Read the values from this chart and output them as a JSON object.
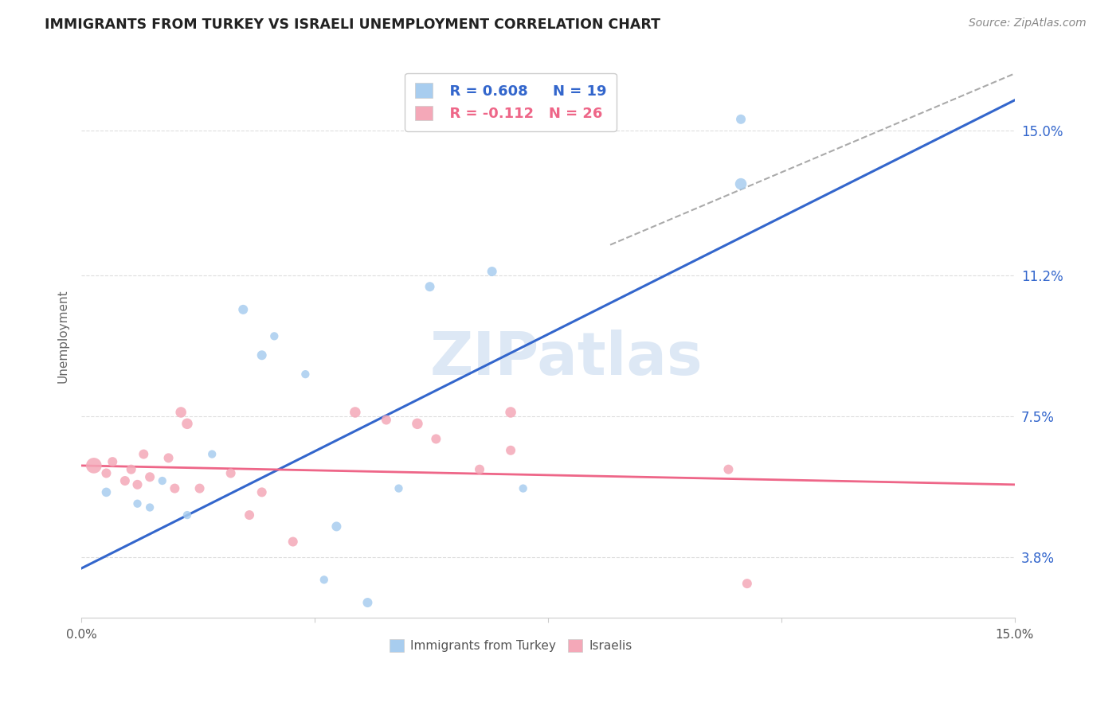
{
  "title": "IMMIGRANTS FROM TURKEY VS ISRAELI UNEMPLOYMENT CORRELATION CHART",
  "source": "Source: ZipAtlas.com",
  "ylabel": "Unemployment",
  "ytick_labels": [
    "3.8%",
    "7.5%",
    "11.2%",
    "15.0%"
  ],
  "ytick_values": [
    3.8,
    7.5,
    11.2,
    15.0
  ],
  "xlim": [
    0.0,
    15.0
  ],
  "ylim": [
    2.2,
    17.0
  ],
  "blue_R": "R = 0.608",
  "blue_N": "N = 19",
  "pink_R": "R = -0.112",
  "pink_N": "N = 26",
  "legend_label_blue": "Immigrants from Turkey",
  "legend_label_pink": "Israelis",
  "blue_color": "#A8CDEF",
  "pink_color": "#F4A8B8",
  "line_blue_color": "#3366CC",
  "line_pink_color": "#EE6688",
  "line_dashed_color": "#AAAAAA",
  "watermark": "ZIPatlas",
  "blue_points": [
    [
      0.4,
      5.5
    ],
    [
      0.9,
      5.2
    ],
    [
      1.1,
      5.1
    ],
    [
      1.3,
      5.8
    ],
    [
      1.7,
      4.9
    ],
    [
      2.1,
      6.5
    ],
    [
      2.6,
      10.3
    ],
    [
      2.9,
      9.1
    ],
    [
      3.1,
      9.6
    ],
    [
      3.6,
      8.6
    ],
    [
      3.9,
      3.2
    ],
    [
      4.1,
      4.6
    ],
    [
      4.6,
      2.6
    ],
    [
      5.1,
      5.6
    ],
    [
      5.6,
      10.9
    ],
    [
      6.6,
      11.3
    ],
    [
      7.1,
      5.6
    ],
    [
      10.6,
      13.6
    ],
    [
      10.6,
      15.3
    ]
  ],
  "blue_sizes": [
    70,
    55,
    55,
    55,
    55,
    55,
    75,
    75,
    55,
    55,
    55,
    75,
    75,
    55,
    75,
    75,
    55,
    110,
    75
  ],
  "pink_points": [
    [
      0.2,
      6.2
    ],
    [
      0.4,
      6.0
    ],
    [
      0.5,
      6.3
    ],
    [
      0.7,
      5.8
    ],
    [
      0.8,
      6.1
    ],
    [
      0.9,
      5.7
    ],
    [
      1.0,
      6.5
    ],
    [
      1.1,
      5.9
    ],
    [
      1.4,
      6.4
    ],
    [
      1.5,
      5.6
    ],
    [
      1.6,
      7.6
    ],
    [
      1.7,
      7.3
    ],
    [
      1.9,
      5.6
    ],
    [
      2.4,
      6.0
    ],
    [
      2.7,
      4.9
    ],
    [
      2.9,
      5.5
    ],
    [
      3.4,
      4.2
    ],
    [
      4.4,
      7.6
    ],
    [
      4.9,
      7.4
    ],
    [
      5.4,
      7.3
    ],
    [
      5.7,
      6.9
    ],
    [
      6.4,
      6.1
    ],
    [
      6.9,
      7.6
    ],
    [
      6.9,
      6.6
    ],
    [
      10.4,
      6.1
    ],
    [
      10.7,
      3.1
    ]
  ],
  "pink_sizes": [
    200,
    75,
    75,
    75,
    75,
    75,
    75,
    75,
    75,
    75,
    95,
    95,
    75,
    75,
    75,
    75,
    75,
    95,
    75,
    95,
    75,
    75,
    95,
    75,
    75,
    75
  ],
  "blue_line_x": [
    0.0,
    15.0
  ],
  "blue_line_y": [
    3.5,
    15.8
  ],
  "pink_line_x": [
    0.0,
    15.0
  ],
  "pink_line_y": [
    6.2,
    5.7
  ],
  "diag_line_x": [
    8.5,
    15.0
  ],
  "diag_line_y": [
    12.0,
    16.5
  ]
}
